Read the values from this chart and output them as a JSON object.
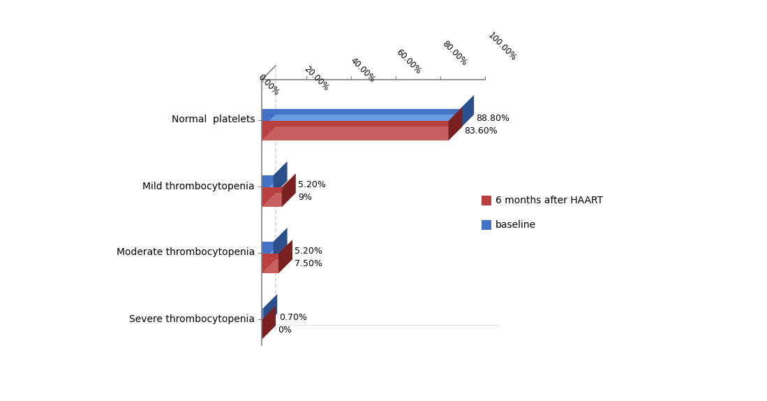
{
  "categories": [
    "Normal  platelets",
    "Mild thrombocytopenia",
    "Moderate thrombocytopenia",
    "Severe thrombocytopenia"
  ],
  "haart_values": [
    83.6,
    9.0,
    7.5,
    0.0
  ],
  "baseline_values": [
    88.8,
    5.2,
    5.2,
    0.7
  ],
  "haart_labels": [
    "83.60%",
    "9%",
    "7.50%",
    "0%"
  ],
  "baseline_labels": [
    "88.80%",
    "5.20%",
    "5.20%",
    "0.70%"
  ],
  "haart_color": "#B84040",
  "haart_top_color": "#C96060",
  "haart_side_color": "#7A2020",
  "baseline_color": "#4472C4",
  "baseline_top_color": "#6699DD",
  "baseline_side_color": "#2A4F8A",
  "xlim": [
    0,
    100
  ],
  "xticks": [
    0,
    20,
    40,
    60,
    80,
    100
  ],
  "xtick_labels": [
    "0.00%",
    "20.00%",
    "40.00%",
    "60.00%",
    "80.00%",
    "100.00%"
  ],
  "legend_haart": "6 months after HAART",
  "legend_baseline": "baseline",
  "background_color": "#ffffff",
  "axis_color": "#808080",
  "label_fontsize": 9,
  "ytick_fontsize": 10
}
